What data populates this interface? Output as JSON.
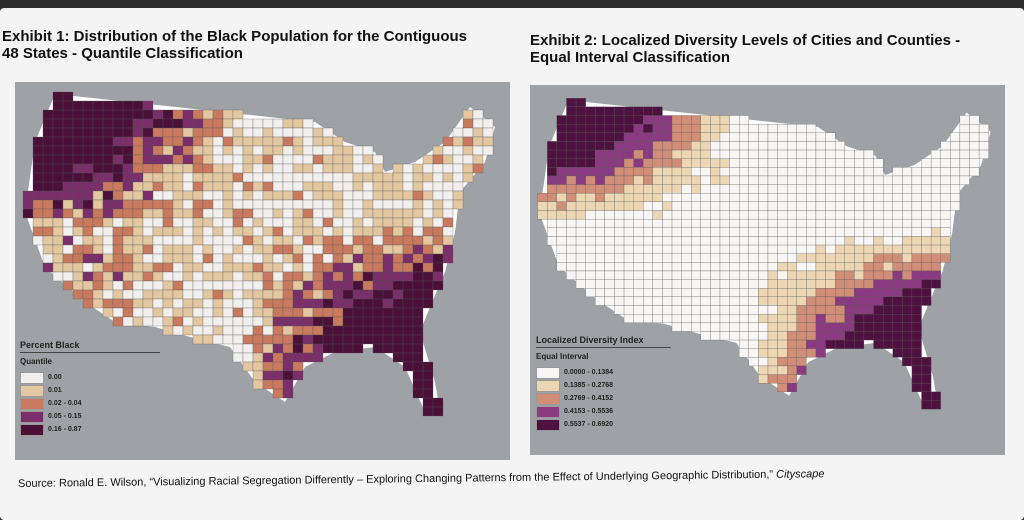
{
  "exhibit1": {
    "title": "Exhibit 1: Distribution of the Black Population for the Contiguous 48 States - Quantile Classification",
    "legend": {
      "title": "Percent Black",
      "subtitle": "Quantile",
      "classes": [
        {
          "label": "0.00",
          "color": "#f2f0ee"
        },
        {
          "label": "0.01",
          "color": "#e3c7a0"
        },
        {
          "label": "0.02 - 0.04",
          "color": "#c97a5e"
        },
        {
          "label": "0.05 - 0.15",
          "color": "#7a2e6a"
        },
        {
          "label": "0.16 - 0.87",
          "color": "#4a1038"
        }
      ]
    }
  },
  "exhibit2": {
    "title": "Exhibit 2: Localized Diversity Levels of Cities and Counties - Equal Interval Classification",
    "legend": {
      "title": "Localized Diversity Index",
      "subtitle": "Equal Interval",
      "classes": [
        {
          "label": "0.0000 - 0.1384",
          "color": "#f7f6f4"
        },
        {
          "label": "0.1385 - 0.2768",
          "color": "#ecd6b4"
        },
        {
          "label": "0.2769 - 0.4152",
          "color": "#d08e78"
        },
        {
          "label": "0.4153 - 0.5536",
          "color": "#8a3a80"
        },
        {
          "label": "0.5537 - 0.6920",
          "color": "#4e1240"
        }
      ]
    }
  },
  "source": {
    "text": "Source: Ronald E. Wilson, “Visualizing Racial Segregation Differently – Exploring Changing Patterns from the Effect of Underlying Geographic Distribution,”",
    "journal": "Cityscape"
  }
}
